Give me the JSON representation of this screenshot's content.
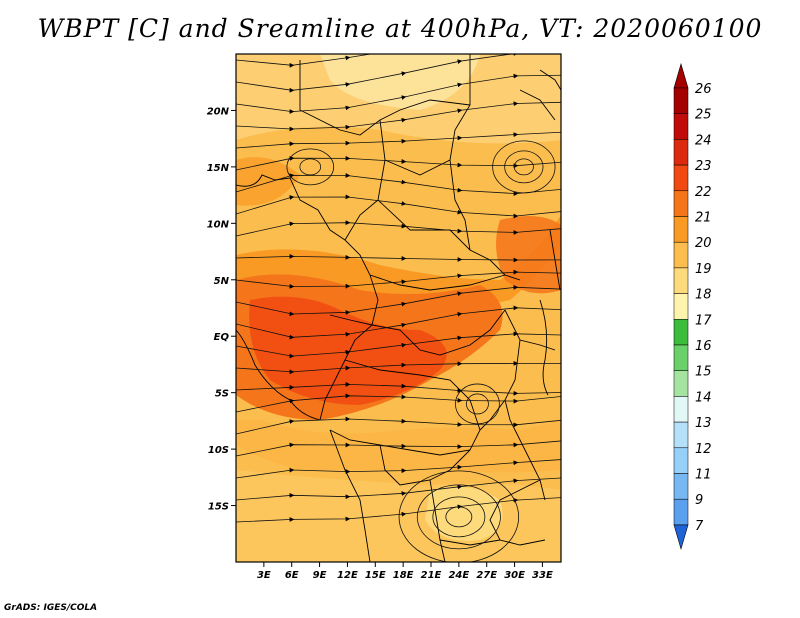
{
  "title": "WBPT [C] and Sreamline at 400hPa, VT: 2020060100",
  "credit": "GrADS: IGES/COLA",
  "map": {
    "lon_range": [
      0,
      35
    ],
    "lat_range": [
      -20,
      25
    ],
    "y_ticks": [
      {
        "lat": 20,
        "label": "20N"
      },
      {
        "lat": 15,
        "label": "15N"
      },
      {
        "lat": 10,
        "label": "10N"
      },
      {
        "lat": 5,
        "label": "5N"
      },
      {
        "lat": 0,
        "label": "EQ"
      },
      {
        "lat": -5,
        "label": "5S"
      },
      {
        "lat": -10,
        "label": "10S"
      },
      {
        "lat": -15,
        "label": "15S"
      }
    ],
    "x_ticks": [
      {
        "lon": 3,
        "label": "3E"
      },
      {
        "lon": 6,
        "label": "6E"
      },
      {
        "lon": 9,
        "label": "9E"
      },
      {
        "lon": 12,
        "label": "12E"
      },
      {
        "lon": 15,
        "label": "15E"
      },
      {
        "lon": 18,
        "label": "18E"
      },
      {
        "lon": 21,
        "label": "21E"
      },
      {
        "lon": 24,
        "label": "24E"
      },
      {
        "lon": 27,
        "label": "27E"
      },
      {
        "lon": 30,
        "label": "30E"
      },
      {
        "lon": 33,
        "label": "33E"
      }
    ]
  },
  "colorbar": {
    "levels": [
      {
        "label": "26",
        "color": "#a50000"
      },
      {
        "label": "25",
        "color": "#c10a0a"
      },
      {
        "label": "24",
        "color": "#dc2a0e"
      },
      {
        "label": "23",
        "color": "#f04a12"
      },
      {
        "label": "22",
        "color": "#f5761a"
      },
      {
        "label": "21",
        "color": "#f99a24"
      },
      {
        "label": "20",
        "color": "#fbbe4e"
      },
      {
        "label": "19",
        "color": "#fdda7c"
      },
      {
        "label": "18",
        "color": "#fef4ae"
      },
      {
        "label": "17",
        "color": "#3cbd3c"
      },
      {
        "label": "16",
        "color": "#6ad06a"
      },
      {
        "label": "15",
        "color": "#a4e4a0"
      },
      {
        "label": "14",
        "color": "#e2f8f6"
      },
      {
        "label": "13",
        "color": "#b4e0fa"
      },
      {
        "label": "12",
        "color": "#96d0f8"
      },
      {
        "label": "11",
        "color": "#78b8f2"
      },
      {
        "label": "9",
        "color": "#5aa0ee"
      },
      {
        "label": "7",
        "color": "#3c88e8"
      }
    ],
    "bottom_arrow_color": "#1e64d6"
  }
}
